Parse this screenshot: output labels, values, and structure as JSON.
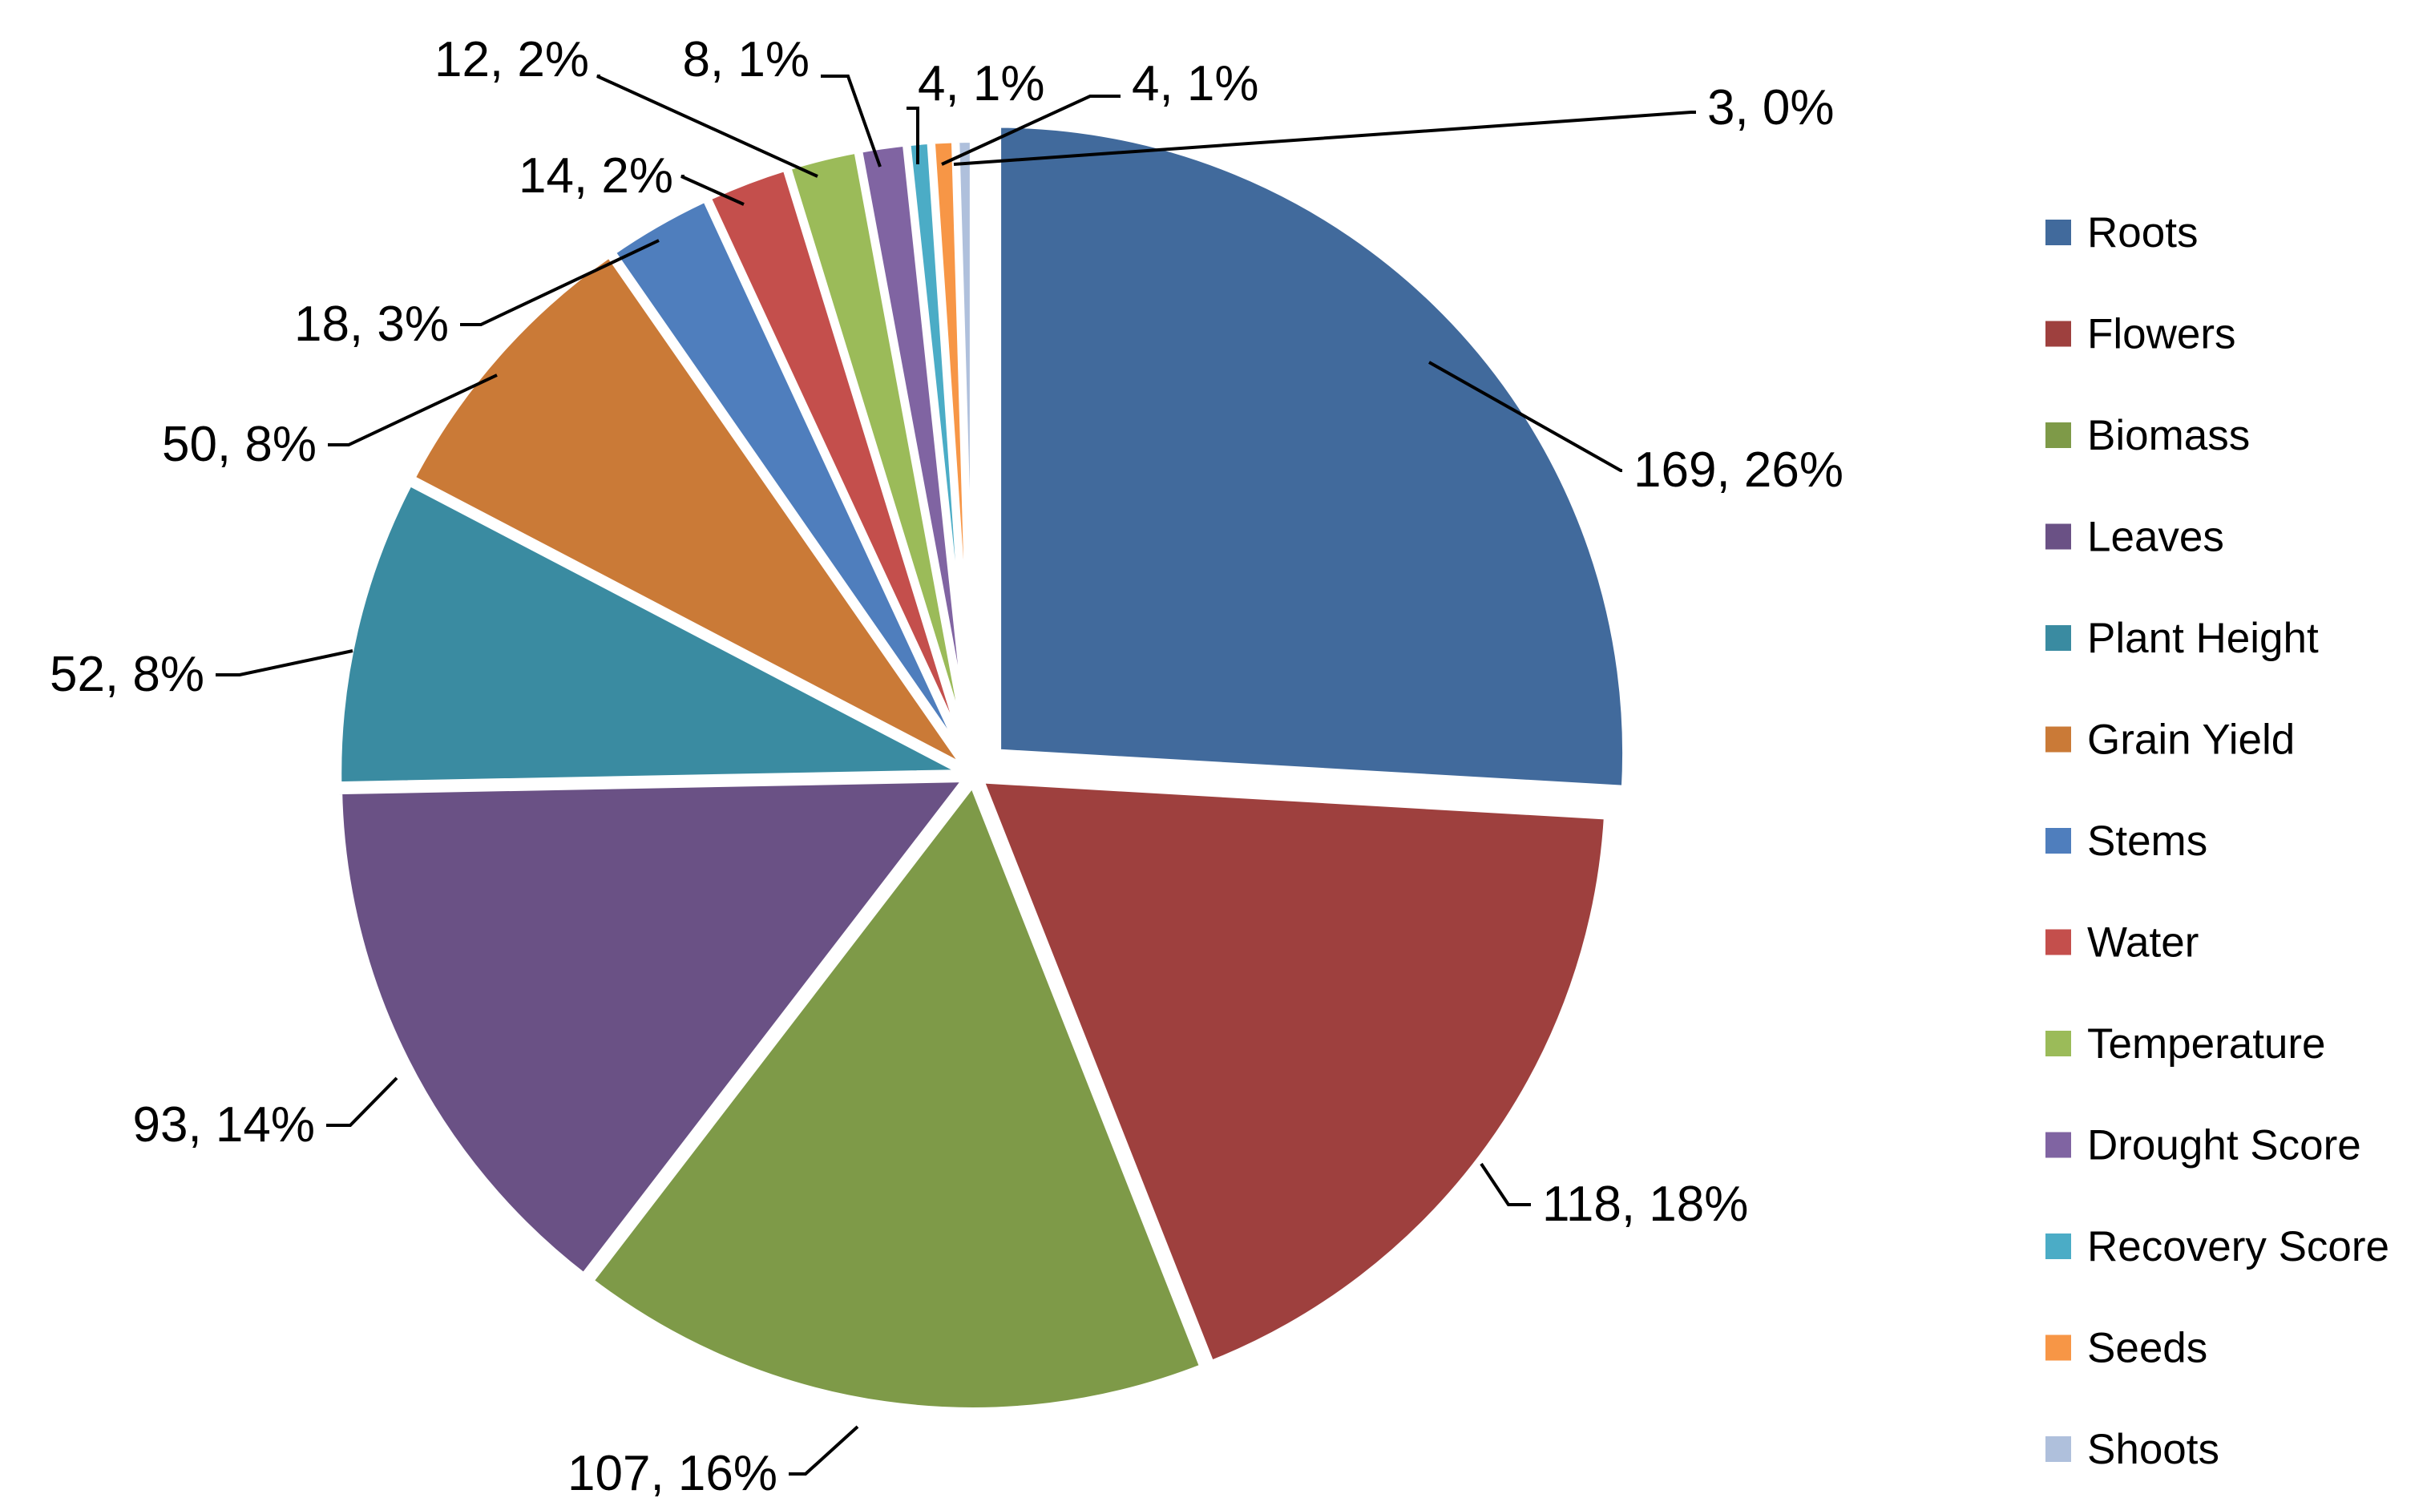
{
  "chart_data": {
    "type": "pie",
    "title": "",
    "legend_position": "right",
    "slices": [
      {
        "label": "Roots",
        "value": 169,
        "percent": "26%",
        "color": "#416A9C"
      },
      {
        "label": "Flowers",
        "value": 118,
        "percent": "18%",
        "color": "#9E403E"
      },
      {
        "label": "Biomass",
        "value": 107,
        "percent": "16%",
        "color": "#7E9A48"
      },
      {
        "label": "Leaves",
        "value": 93,
        "percent": "14%",
        "color": "#6A5185"
      },
      {
        "label": "Plant Height",
        "value": 52,
        "percent": "8%",
        "color": "#3A8BA1"
      },
      {
        "label": "Grain Yield",
        "value": 50,
        "percent": "8%",
        "color": "#CA7A37"
      },
      {
        "label": "Stems",
        "value": 18,
        "percent": "3%",
        "color": "#4F7EBD"
      },
      {
        "label": "Water",
        "value": 14,
        "percent": "2%",
        "color": "#C44F4C"
      },
      {
        "label": "Temperature",
        "value": 12,
        "percent": "2%",
        "color": "#9BBB59"
      },
      {
        "label": "Drought Score",
        "value": 8,
        "percent": "1%",
        "color": "#8064A2"
      },
      {
        "label": "Recovery Score",
        "value": 4,
        "percent": "1%",
        "color": "#4BACC6"
      },
      {
        "label": "Seeds",
        "value": 4,
        "percent": "1%",
        "color": "#F79646"
      },
      {
        "label": "Shoots",
        "value": 3,
        "percent": "0%",
        "color": "#AFC0DC"
      }
    ]
  }
}
